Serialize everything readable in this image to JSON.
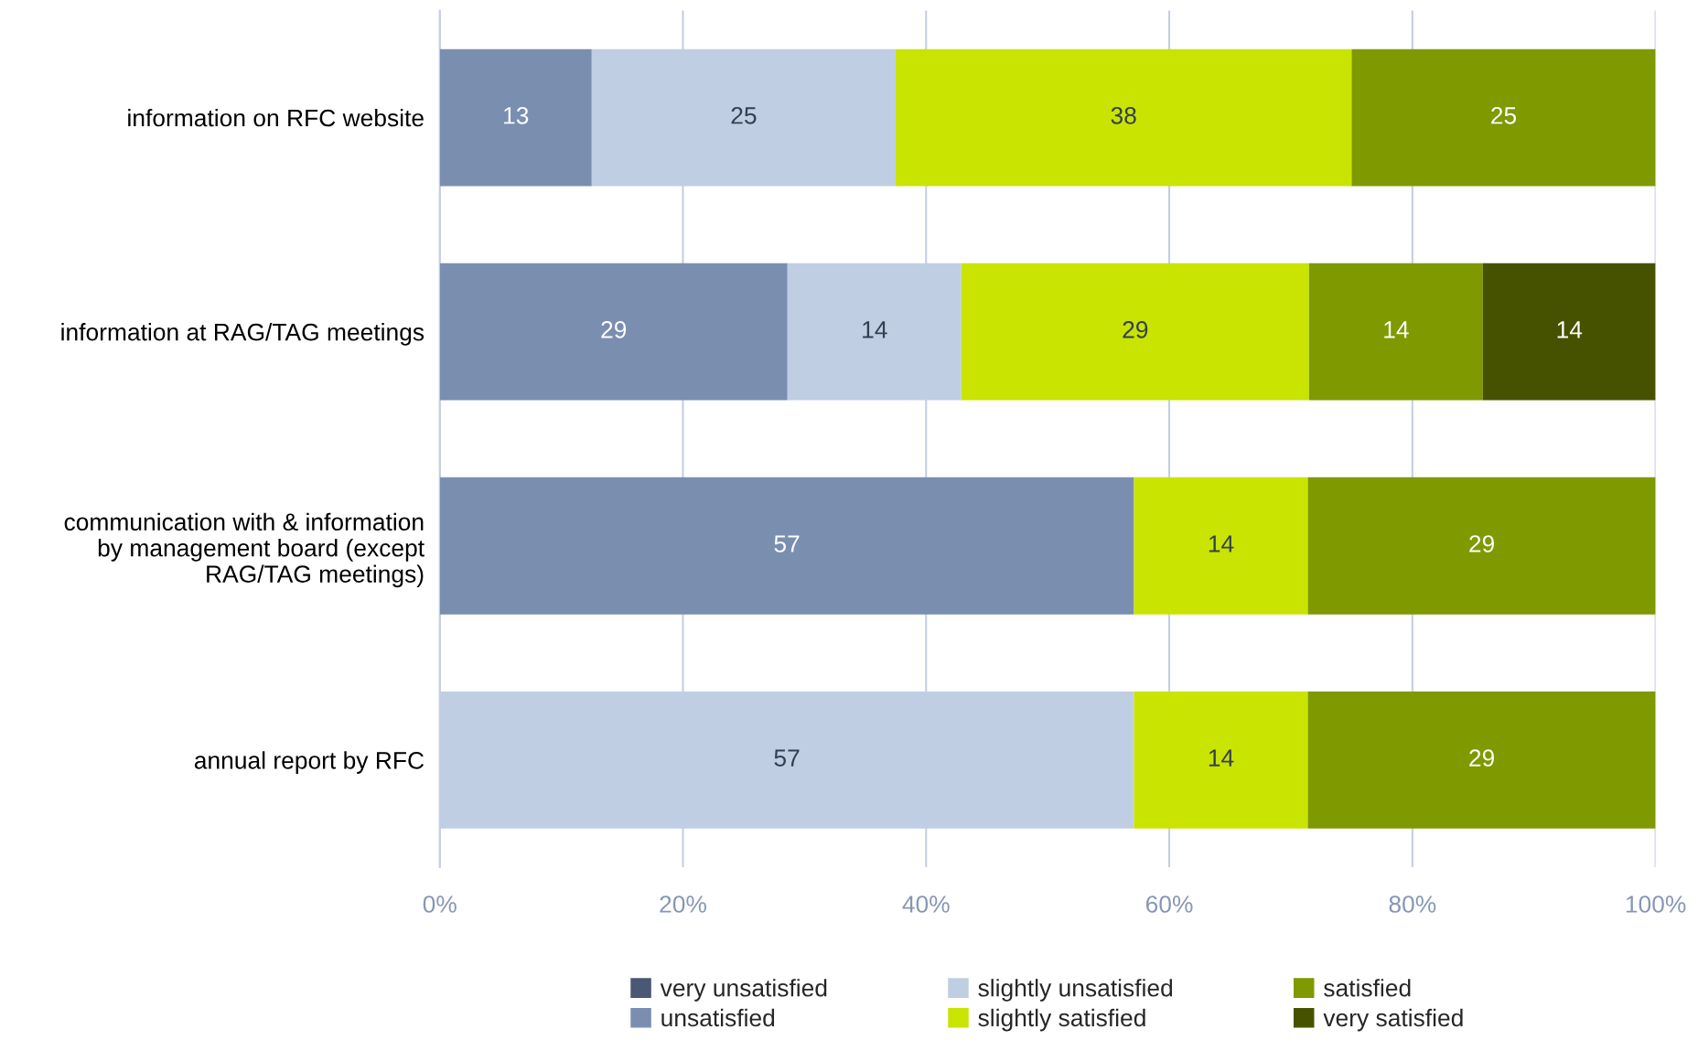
{
  "chart_data": {
    "type": "bar",
    "orientation": "horizontal",
    "stacked": true,
    "categories": [
      "information on RFC website",
      "information at RAG/TAG meetings",
      "communication with & information\nby management board (except\nRAG/TAG meetings)",
      "annual report by RFC"
    ],
    "series": [
      {
        "name": "very unsatisfied",
        "color": "#4b5873",
        "values": [
          null,
          null,
          null,
          null
        ],
        "value_labels": [
          null,
          null,
          null,
          null
        ]
      },
      {
        "name": "unsatisfied",
        "color": "#7a8eb0",
        "values": [
          12.5,
          28.6,
          57.1,
          null
        ],
        "value_labels": [
          "13",
          "29",
          "57",
          null
        ]
      },
      {
        "name": "slightly unsatisfied",
        "color": "#c0cee4",
        "values": [
          25,
          14.3,
          null,
          57.1
        ],
        "value_labels": [
          "25",
          "14",
          null,
          "57"
        ]
      },
      {
        "name": "slightly satisfied",
        "color": "#c8e400",
        "values": [
          37.5,
          28.6,
          14.3,
          14.3
        ],
        "value_labels": [
          "38",
          "29",
          "14",
          "14"
        ]
      },
      {
        "name": "satisfied",
        "color": "#7f9900",
        "values": [
          25,
          14.3,
          28.6,
          28.6
        ],
        "value_labels": [
          "25",
          "14",
          "29",
          "29"
        ]
      },
      {
        "name": "very satisfied",
        "color": "#475200",
        "values": [
          null,
          14.2,
          null,
          null
        ],
        "value_labels": [
          null,
          "14",
          null,
          null
        ]
      }
    ],
    "xlim": [
      0,
      100
    ],
    "xticks": [
      {
        "value": 0,
        "label": "0%"
      },
      {
        "value": 20,
        "label": "20%"
      },
      {
        "value": 40,
        "label": "40%"
      },
      {
        "value": 60,
        "label": "60%"
      },
      {
        "value": 80,
        "label": "80%"
      },
      {
        "value": 100,
        "label": "100%"
      }
    ],
    "grid": "x",
    "legend": "bottom"
  }
}
